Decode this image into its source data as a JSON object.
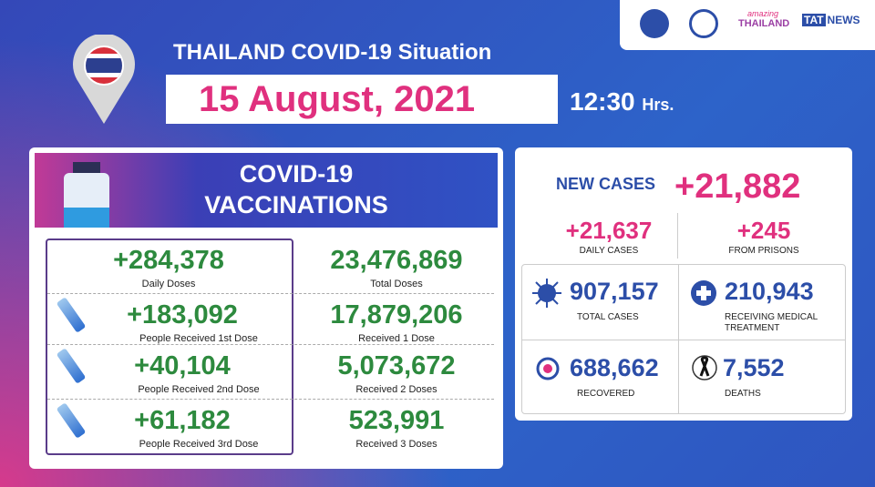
{
  "header": {
    "title": "THAILAND COVID-19 Situation",
    "date": "15 August, 2021",
    "time": "12:30",
    "time_unit": "Hrs."
  },
  "logos": {
    "amazing": "amazing",
    "thailand": "THAILAND",
    "tat": "TAT",
    "news": "NEWS"
  },
  "vaccinations": {
    "title_line1": "COVID-19",
    "title_line2": "VACCINATIONS",
    "rows": [
      {
        "value": "+284,378",
        "label": "Daily Doses",
        "total": "23,476,869",
        "total_label": "Total Doses"
      },
      {
        "value": "+183,092",
        "label": "People Received 1st Dose",
        "total": "17,879,206",
        "total_label": "Received 1 Dose"
      },
      {
        "value": "+40,104",
        "label": "People Received 2nd Dose",
        "total": "5,073,672",
        "total_label": "Received 2 Doses"
      },
      {
        "value": "+61,182",
        "label": "People Received 3rd Dose",
        "total": "523,991",
        "total_label": "Received 3 Doses"
      }
    ]
  },
  "cases": {
    "new_cases_label": "NEW CASES",
    "new_cases": "+21,882",
    "daily": {
      "value": "+21,637",
      "label": "DAILY CASES"
    },
    "prisons": {
      "value": "+245",
      "label": "FROM PRISONS"
    },
    "stats": [
      {
        "value": "907,157",
        "label": "TOTAL CASES"
      },
      {
        "value": "210,943",
        "label": "RECEIVING MEDICAL TREATMENT"
      },
      {
        "value": "688,662",
        "label": "RECOVERED"
      },
      {
        "value": "7,552",
        "label": "DEATHS"
      }
    ]
  }
}
